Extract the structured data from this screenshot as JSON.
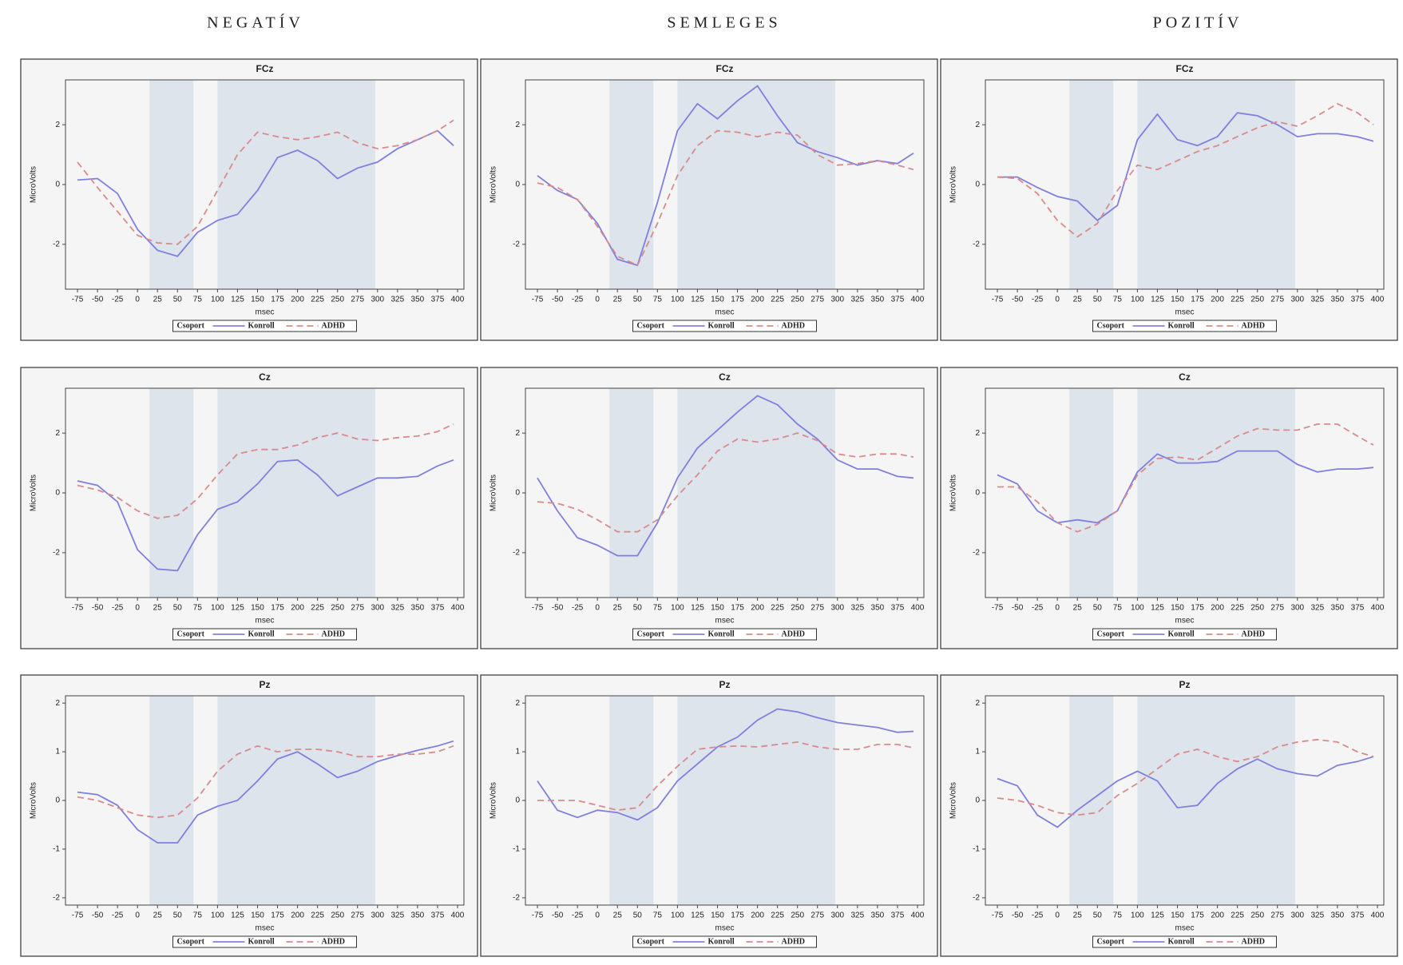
{
  "columns": [
    "NEGATÍV",
    "SEMLEGES",
    "POZITÍV"
  ],
  "chart_data": [
    {
      "type": "line",
      "title": "FCz",
      "x_label": "msec",
      "y_label": "MicroVolts",
      "legend_title": "Csoport",
      "x": [
        -75,
        -50,
        -25,
        0,
        25,
        50,
        75,
        100,
        125,
        150,
        175,
        200,
        225,
        250,
        275,
        300,
        325,
        350,
        375,
        395
      ],
      "series": [
        {
          "name": "Konroll",
          "color": "#7f7fe0",
          "dash": false,
          "values": [
            0.15,
            0.2,
            -0.3,
            -1.5,
            -2.2,
            -2.4,
            -1.6,
            -1.2,
            -1.0,
            -0.2,
            0.9,
            1.15,
            0.8,
            0.2,
            0.55,
            0.75,
            1.2,
            1.5,
            1.8,
            1.3
          ]
        },
        {
          "name": "ADHD",
          "color": "#d98a8a",
          "dash": true,
          "values": [
            0.75,
            -0.1,
            -0.9,
            -1.7,
            -1.95,
            -2.0,
            -1.4,
            -0.2,
            1.0,
            1.75,
            1.6,
            1.5,
            1.6,
            1.75,
            1.4,
            1.2,
            1.3,
            1.5,
            1.8,
            2.15
          ]
        }
      ],
      "xlim": [
        -90,
        408
      ],
      "ylim": [
        -3.5,
        3.5
      ],
      "xticks": [
        -75,
        -50,
        -25,
        0,
        25,
        50,
        75,
        100,
        125,
        150,
        175,
        200,
        225,
        250,
        275,
        300,
        325,
        350,
        375,
        400
      ],
      "yticks": [
        -2,
        0,
        2
      ],
      "shaded_regions": [
        [
          15,
          70
        ],
        [
          100,
          297
        ]
      ],
      "shade_color": "#dde4ec"
    },
    {
      "type": "line",
      "title": "FCz",
      "x_label": "msec",
      "y_label": "MicroVolts",
      "legend_title": "Csoport",
      "x": [
        -75,
        -50,
        -25,
        0,
        25,
        50,
        75,
        100,
        125,
        150,
        175,
        200,
        225,
        250,
        275,
        300,
        325,
        350,
        375,
        395
      ],
      "series": [
        {
          "name": "Konroll",
          "color": "#7f7fe0",
          "dash": false,
          "values": [
            0.3,
            -0.2,
            -0.5,
            -1.3,
            -2.5,
            -2.7,
            -0.6,
            1.8,
            2.7,
            2.2,
            2.8,
            3.3,
            2.3,
            1.4,
            1.1,
            0.9,
            0.65,
            0.8,
            0.7,
            1.05
          ]
        },
        {
          "name": "ADHD",
          "color": "#d98a8a",
          "dash": true,
          "values": [
            0.05,
            -0.1,
            -0.5,
            -1.4,
            -2.4,
            -2.7,
            -1.3,
            0.3,
            1.3,
            1.8,
            1.75,
            1.6,
            1.75,
            1.65,
            1.0,
            0.65,
            0.7,
            0.8,
            0.65,
            0.5
          ]
        }
      ],
      "xlim": [
        -90,
        408
      ],
      "ylim": [
        -3.5,
        3.5
      ],
      "xticks": [
        -75,
        -50,
        -25,
        0,
        25,
        50,
        75,
        100,
        125,
        150,
        175,
        200,
        225,
        250,
        275,
        300,
        325,
        350,
        375,
        400
      ],
      "yticks": [
        -2,
        0,
        2
      ],
      "shaded_regions": [
        [
          15,
          70
        ],
        [
          100,
          297
        ]
      ],
      "shade_color": "#dde4ec"
    },
    {
      "type": "line",
      "title": "FCz",
      "x_label": "msec",
      "y_label": "MicroVolts",
      "legend_title": "Csoport",
      "x": [
        -75,
        -50,
        -25,
        0,
        25,
        50,
        75,
        100,
        125,
        150,
        175,
        200,
        225,
        250,
        275,
        300,
        325,
        350,
        375,
        395
      ],
      "series": [
        {
          "name": "Konroll",
          "color": "#7f7fe0",
          "dash": false,
          "values": [
            0.25,
            0.25,
            -0.1,
            -0.4,
            -0.55,
            -1.2,
            -0.7,
            1.5,
            2.35,
            1.5,
            1.3,
            1.6,
            2.4,
            2.3,
            2.0,
            1.6,
            1.7,
            1.7,
            1.6,
            1.45
          ]
        },
        {
          "name": "ADHD",
          "color": "#d98a8a",
          "dash": true,
          "values": [
            0.25,
            0.2,
            -0.3,
            -1.2,
            -1.75,
            -1.3,
            -0.2,
            0.65,
            0.5,
            0.8,
            1.1,
            1.3,
            1.6,
            1.9,
            2.1,
            1.95,
            2.3,
            2.7,
            2.4,
            2.0
          ]
        }
      ],
      "xlim": [
        -90,
        408
      ],
      "ylim": [
        -3.5,
        3.5
      ],
      "xticks": [
        -75,
        -50,
        -25,
        0,
        25,
        50,
        75,
        100,
        125,
        150,
        175,
        200,
        225,
        250,
        275,
        300,
        325,
        350,
        375,
        400
      ],
      "yticks": [
        -2,
        0,
        2
      ],
      "shaded_regions": [
        [
          15,
          70
        ],
        [
          100,
          297
        ]
      ],
      "shade_color": "#dde4ec"
    },
    {
      "type": "line",
      "title": "Cz",
      "x_label": "msec",
      "y_label": "MicroVolts",
      "legend_title": "Csoport",
      "x": [
        -75,
        -50,
        -25,
        0,
        25,
        50,
        75,
        100,
        125,
        150,
        175,
        200,
        225,
        250,
        275,
        300,
        325,
        350,
        375,
        395
      ],
      "series": [
        {
          "name": "Konroll",
          "color": "#7f7fe0",
          "dash": false,
          "values": [
            0.4,
            0.25,
            -0.3,
            -1.9,
            -2.55,
            -2.6,
            -1.4,
            -0.55,
            -0.3,
            0.3,
            1.05,
            1.1,
            0.6,
            -0.1,
            0.2,
            0.5,
            0.5,
            0.55,
            0.9,
            1.1
          ]
        },
        {
          "name": "ADHD",
          "color": "#d98a8a",
          "dash": true,
          "values": [
            0.25,
            0.1,
            -0.15,
            -0.6,
            -0.85,
            -0.75,
            -0.2,
            0.6,
            1.3,
            1.45,
            1.45,
            1.6,
            1.85,
            2.0,
            1.8,
            1.75,
            1.85,
            1.9,
            2.05,
            2.3
          ]
        }
      ],
      "xlim": [
        -90,
        408
      ],
      "ylim": [
        -3.5,
        3.5
      ],
      "xticks": [
        -75,
        -50,
        -25,
        0,
        25,
        50,
        75,
        100,
        125,
        150,
        175,
        200,
        225,
        250,
        275,
        300,
        325,
        350,
        375,
        400
      ],
      "yticks": [
        -2,
        0,
        2
      ],
      "shaded_regions": [
        [
          15,
          70
        ],
        [
          100,
          297
        ]
      ],
      "shade_color": "#dde4ec"
    },
    {
      "type": "line",
      "title": "Cz",
      "x_label": "msec",
      "y_label": "MicroVolts",
      "legend_title": "Csoport",
      "x": [
        -75,
        -50,
        -25,
        0,
        25,
        50,
        75,
        100,
        125,
        150,
        175,
        200,
        225,
        250,
        275,
        300,
        325,
        350,
        375,
        395
      ],
      "series": [
        {
          "name": "Konroll",
          "color": "#7f7fe0",
          "dash": false,
          "values": [
            0.5,
            -0.6,
            -1.5,
            -1.75,
            -2.1,
            -2.1,
            -1.0,
            0.5,
            1.5,
            2.1,
            2.7,
            3.25,
            2.95,
            2.3,
            1.8,
            1.1,
            0.8,
            0.8,
            0.55,
            0.5
          ]
        },
        {
          "name": "ADHD",
          "color": "#d98a8a",
          "dash": true,
          "values": [
            -0.3,
            -0.35,
            -0.55,
            -0.9,
            -1.3,
            -1.3,
            -0.9,
            -0.1,
            0.6,
            1.4,
            1.8,
            1.7,
            1.8,
            2.0,
            1.75,
            1.3,
            1.2,
            1.3,
            1.3,
            1.2
          ]
        }
      ],
      "xlim": [
        -90,
        408
      ],
      "ylim": [
        -3.5,
        3.5
      ],
      "xticks": [
        -75,
        -50,
        -25,
        0,
        25,
        50,
        75,
        100,
        125,
        150,
        175,
        200,
        225,
        250,
        275,
        300,
        325,
        350,
        375,
        400
      ],
      "yticks": [
        -2,
        0,
        2
      ],
      "shaded_regions": [
        [
          15,
          70
        ],
        [
          100,
          297
        ]
      ],
      "shade_color": "#dde4ec"
    },
    {
      "type": "line",
      "title": "Cz",
      "x_label": "msec",
      "y_label": "MicroVolts",
      "legend_title": "Csoport",
      "x": [
        -75,
        -50,
        -25,
        0,
        25,
        50,
        75,
        100,
        125,
        150,
        175,
        200,
        225,
        250,
        275,
        300,
        325,
        350,
        375,
        395
      ],
      "series": [
        {
          "name": "Konroll",
          "color": "#7f7fe0",
          "dash": false,
          "values": [
            0.6,
            0.3,
            -0.6,
            -1.0,
            -0.9,
            -1.0,
            -0.6,
            0.7,
            1.3,
            1.0,
            1.0,
            1.05,
            1.4,
            1.4,
            1.4,
            0.95,
            0.7,
            0.8,
            0.8,
            0.85
          ]
        },
        {
          "name": "ADHD",
          "color": "#d98a8a",
          "dash": true,
          "values": [
            0.2,
            0.2,
            -0.3,
            -1.0,
            -1.3,
            -1.05,
            -0.6,
            0.6,
            1.15,
            1.2,
            1.1,
            1.5,
            1.9,
            2.15,
            2.1,
            2.1,
            2.3,
            2.3,
            1.9,
            1.6
          ]
        }
      ],
      "xlim": [
        -90,
        408
      ],
      "ylim": [
        -3.5,
        3.5
      ],
      "xticks": [
        -75,
        -50,
        -25,
        0,
        25,
        50,
        75,
        100,
        125,
        150,
        175,
        200,
        225,
        250,
        275,
        300,
        325,
        350,
        375,
        400
      ],
      "yticks": [
        -2,
        0,
        2
      ],
      "shaded_regions": [
        [
          15,
          70
        ],
        [
          100,
          297
        ]
      ],
      "shade_color": "#dde4ec"
    },
    {
      "type": "line",
      "title": "Pz",
      "x_label": "msec",
      "y_label": "MicroVolts",
      "legend_title": "Csoport",
      "x": [
        -75,
        -50,
        -25,
        0,
        25,
        50,
        75,
        100,
        125,
        150,
        175,
        200,
        225,
        250,
        275,
        300,
        325,
        350,
        375,
        395
      ],
      "series": [
        {
          "name": "Konroll",
          "color": "#7f7fe0",
          "dash": false,
          "values": [
            0.17,
            0.12,
            -0.1,
            -0.6,
            -0.87,
            -0.87,
            -0.3,
            -0.12,
            0.0,
            0.4,
            0.85,
            1.0,
            0.75,
            0.47,
            0.6,
            0.8,
            0.92,
            1.03,
            1.12,
            1.22
          ]
        },
        {
          "name": "ADHD",
          "color": "#d98a8a",
          "dash": true,
          "values": [
            0.07,
            0.0,
            -0.15,
            -0.3,
            -0.35,
            -0.3,
            0.05,
            0.6,
            0.95,
            1.12,
            1.0,
            1.05,
            1.05,
            1.0,
            0.9,
            0.9,
            0.95,
            0.95,
            1.0,
            1.12
          ]
        }
      ],
      "xlim": [
        -90,
        408
      ],
      "ylim": [
        -2.15,
        2.15
      ],
      "xticks": [
        -75,
        -50,
        -25,
        0,
        25,
        50,
        75,
        100,
        125,
        150,
        175,
        200,
        225,
        250,
        275,
        300,
        325,
        350,
        375,
        400
      ],
      "yticks": [
        -2,
        -1,
        0,
        1,
        2
      ],
      "shaded_regions": [
        [
          15,
          70
        ],
        [
          100,
          297
        ]
      ],
      "shade_color": "#dde4ec"
    },
    {
      "type": "line",
      "title": "Pz",
      "x_label": "msec",
      "y_label": "MicroVolts",
      "legend_title": "Csoport",
      "x": [
        -75,
        -50,
        -25,
        0,
        25,
        50,
        75,
        100,
        125,
        150,
        175,
        200,
        225,
        250,
        275,
        300,
        325,
        350,
        375,
        395
      ],
      "series": [
        {
          "name": "Konroll",
          "color": "#7f7fe0",
          "dash": false,
          "values": [
            0.4,
            -0.2,
            -0.35,
            -0.2,
            -0.25,
            -0.4,
            -0.15,
            0.4,
            0.75,
            1.1,
            1.3,
            1.65,
            1.88,
            1.82,
            1.7,
            1.6,
            1.55,
            1.5,
            1.4,
            1.42
          ]
        },
        {
          "name": "ADHD",
          "color": "#d98a8a",
          "dash": true,
          "values": [
            0.0,
            0.0,
            0.0,
            -0.1,
            -0.2,
            -0.15,
            0.3,
            0.7,
            1.05,
            1.1,
            1.12,
            1.1,
            1.15,
            1.2,
            1.1,
            1.05,
            1.05,
            1.15,
            1.15,
            1.08
          ]
        }
      ],
      "xlim": [
        -90,
        408
      ],
      "ylim": [
        -2.15,
        2.15
      ],
      "xticks": [
        -75,
        -50,
        -25,
        0,
        25,
        50,
        75,
        100,
        125,
        150,
        175,
        200,
        225,
        250,
        275,
        300,
        325,
        350,
        375,
        400
      ],
      "yticks": [
        -2,
        -1,
        0,
        1,
        2
      ],
      "shaded_regions": [
        [
          15,
          70
        ],
        [
          100,
          297
        ]
      ],
      "shade_color": "#dde4ec"
    },
    {
      "type": "line",
      "title": "Pz",
      "x_label": "msec",
      "y_label": "MicroVolts",
      "legend_title": "Csoport",
      "x": [
        -75,
        -50,
        -25,
        0,
        25,
        50,
        75,
        100,
        125,
        150,
        175,
        200,
        225,
        250,
        275,
        300,
        325,
        350,
        375,
        395
      ],
      "series": [
        {
          "name": "Konroll",
          "color": "#7f7fe0",
          "dash": false,
          "values": [
            0.45,
            0.3,
            -0.3,
            -0.55,
            -0.2,
            0.1,
            0.4,
            0.6,
            0.4,
            -0.15,
            -0.1,
            0.35,
            0.65,
            0.85,
            0.65,
            0.55,
            0.5,
            0.72,
            0.8,
            0.9
          ]
        },
        {
          "name": "ADHD",
          "color": "#d98a8a",
          "dash": true,
          "values": [
            0.05,
            0.0,
            -0.1,
            -0.25,
            -0.3,
            -0.25,
            0.1,
            0.35,
            0.65,
            0.95,
            1.05,
            0.9,
            0.8,
            0.9,
            1.1,
            1.2,
            1.25,
            1.2,
            1.0,
            0.9
          ]
        }
      ],
      "xlim": [
        -90,
        408
      ],
      "ylim": [
        -2.15,
        2.15
      ],
      "xticks": [
        -75,
        -50,
        -25,
        0,
        25,
        50,
        75,
        100,
        125,
        150,
        175,
        200,
        225,
        250,
        275,
        300,
        325,
        350,
        375,
        400
      ],
      "yticks": [
        -2,
        -1,
        0,
        1,
        2
      ],
      "shaded_regions": [
        [
          15,
          70
        ],
        [
          100,
          297
        ]
      ],
      "shade_color": "#dde4ec"
    }
  ]
}
